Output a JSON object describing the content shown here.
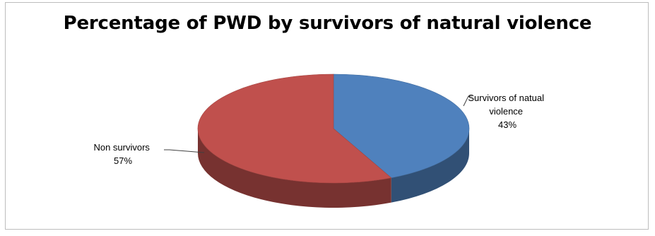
{
  "chart_data": {
    "type": "pie",
    "title": "Percentage of PWD by survivors of natural violence",
    "categories": [
      "Survivors of natual violence",
      "Non survivors"
    ],
    "values": [
      43,
      57
    ],
    "colors": [
      "#4f81bd",
      "#c0504d"
    ],
    "label_lines": {
      "survivors": [
        "Survivors of natual",
        "violence",
        "43%"
      ],
      "non_survivors": [
        "Non survivors",
        "57%"
      ]
    },
    "style": "3d"
  }
}
